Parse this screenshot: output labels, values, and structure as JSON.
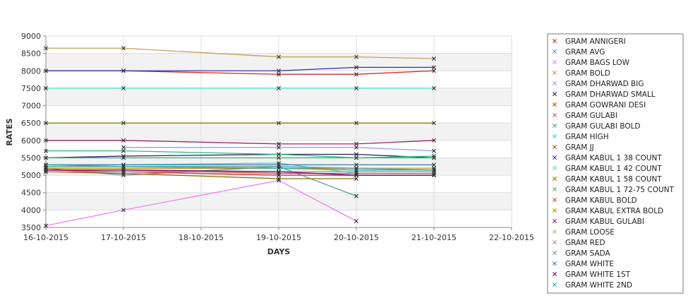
{
  "chart_data": {
    "type": "line",
    "xlabel": "DAYS",
    "ylabel": "RATES",
    "x_ticks": [
      "16-10-2015",
      "17-10-2015",
      "18-10-2015",
      "19-10-2015",
      "20-10-2015",
      "21-10-2015",
      "22-10-2015"
    ],
    "x_dates": [
      "16-10-2015",
      "17-10-2015",
      "19-10-2015",
      "20-10-2015",
      "21-10-2015"
    ],
    "ylim": [
      3500,
      9000
    ],
    "y_ticks": [
      3500,
      4000,
      4500,
      5000,
      5500,
      6000,
      6500,
      7000,
      7500,
      8000,
      8500,
      9000
    ],
    "grid": true,
    "legend_position": "right",
    "series": [
      {
        "name": "GRAM ANNIGERI",
        "color": "#d62728",
        "values": [
          8000,
          8000,
          7900,
          7900,
          8000
        ]
      },
      {
        "name": "GRAM AVG",
        "color": "#5f9ea0",
        "values": [
          5200,
          5000,
          5250,
          4400,
          null
        ]
      },
      {
        "name": "GRAM BAGS LOW",
        "color": "#ee82ee",
        "values": [
          3550,
          4000,
          4850,
          3680,
          null
        ]
      },
      {
        "name": "GRAM BOLD",
        "color": "#c0a060",
        "values": [
          8650,
          8650,
          8400,
          8400,
          8350
        ]
      },
      {
        "name": "GRAM DHARWAD BIG",
        "color": "#9999ff",
        "values": [
          null,
          5800,
          5800,
          5800,
          5700
        ]
      },
      {
        "name": "GRAM DHARWAD SMALL",
        "color": "#222266",
        "values": [
          5500,
          5550,
          5600,
          5600,
          5500
        ]
      },
      {
        "name": "GRAM GOWRANI DESI",
        "color": "#8b6914",
        "values": [
          5100,
          5050,
          4900,
          4900,
          null
        ]
      },
      {
        "name": "GRAM GULABI",
        "color": "#cd5c5c",
        "values": [
          5150,
          5150,
          5050,
          5050,
          5050
        ]
      },
      {
        "name": "GRAM GULABI BOLD",
        "color": "#20c080",
        "values": [
          5700,
          5700,
          5600,
          5500,
          5550
        ]
      },
      {
        "name": "GRAM HIGH",
        "color": "#48d1cc",
        "values": [
          5300,
          5300,
          5350,
          5050,
          null
        ]
      },
      {
        "name": "GRAM JJ",
        "color": "#a0522d",
        "values": [
          5100,
          5100,
          5000,
          5000,
          5000
        ]
      },
      {
        "name": "GRAM KABUL 1 38 COUNT",
        "color": "#3030c0",
        "values": [
          8000,
          8000,
          8000,
          8100,
          8100
        ]
      },
      {
        "name": "GRAM KABUL 1 42 COUNT",
        "color": "#40e0d0",
        "values": [
          7500,
          7500,
          7500,
          7500,
          7500
        ]
      },
      {
        "name": "GRAM KABUL 1 58 COUNT",
        "color": "#808000",
        "values": [
          6500,
          6500,
          6500,
          6500,
          6500
        ]
      },
      {
        "name": "GRAM KABUL 1 72-75 COUNT",
        "color": "#3cb371",
        "values": [
          5500,
          5500,
          5500,
          5500,
          5500
        ]
      },
      {
        "name": "GRAM KABUL BOLD",
        "color": "#e04040",
        "values": [
          5150,
          5100,
          5000,
          5000,
          5000
        ]
      },
      {
        "name": "GRAM KABUL EXTRA BOLD",
        "color": "#b8860b",
        "values": [
          5200,
          5200,
          5200,
          5200,
          5200
        ]
      },
      {
        "name": "GRAM KABUL GULABI",
        "color": "#a02060",
        "values": [
          6000,
          6000,
          5900,
          5900,
          6000
        ]
      },
      {
        "name": "GRAM LOOSE",
        "color": "#bdb76b",
        "values": [
          5250,
          5250,
          5250,
          5200,
          5200
        ]
      },
      {
        "name": "GRAM RED",
        "color": "#bc8f8f",
        "values": [
          5100,
          5100,
          5100,
          5100,
          5100
        ]
      },
      {
        "name": "GRAM SADA",
        "color": "#5f9ea0",
        "values": [
          5250,
          5250,
          5250,
          5200,
          5150
        ]
      },
      {
        "name": "GRAM WHITE",
        "color": "#4682b4",
        "values": [
          5300,
          5300,
          5300,
          5300,
          5300
        ]
      },
      {
        "name": "GRAM WHITE 1ST",
        "color": "#800080",
        "values": [
          5150,
          5150,
          5100,
          5000,
          5000
        ]
      },
      {
        "name": "GRAM WHITE 2ND",
        "color": "#20b2aa",
        "values": [
          5300,
          5250,
          5200,
          5150,
          5150
        ]
      }
    ]
  }
}
